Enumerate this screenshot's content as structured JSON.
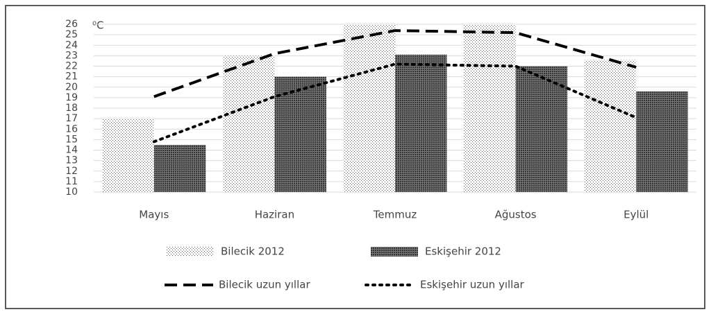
{
  "chart_data": {
    "type": "bar",
    "unit": "⁰C",
    "categories": [
      "Mayıs",
      "Haziran",
      "Temmuz",
      "Ağustos",
      "Eylül"
    ],
    "series": [
      {
        "name": "Bilecik 2012",
        "type": "bar",
        "color": "#555555",
        "pattern": "sparse-dots",
        "values": [
          17,
          23,
          26,
          26,
          22.6
        ]
      },
      {
        "name": "Eskişehir 2012",
        "type": "bar",
        "color": "#3a3a3a",
        "pattern": "dense-dots",
        "values": [
          14.5,
          21,
          23.1,
          22,
          19.6
        ]
      },
      {
        "name": "Bilecik uzun yıllar",
        "type": "line",
        "color": "#000000",
        "line_style": "dashed",
        "values": [
          19.1,
          23.2,
          25.4,
          25.2,
          21.9
        ]
      },
      {
        "name": "Eskişehir uzun yıllar",
        "type": "line",
        "color": "#000000",
        "line_style": "dotted",
        "values": [
          14.8,
          19.1,
          22.2,
          22,
          17.1
        ]
      }
    ],
    "ylim": [
      10,
      26
    ],
    "yticks": [
      10,
      11,
      12,
      13,
      14,
      15,
      16,
      17,
      18,
      19,
      20,
      21,
      22,
      23,
      24,
      25,
      26
    ],
    "grid": true,
    "legend": "bottom"
  }
}
